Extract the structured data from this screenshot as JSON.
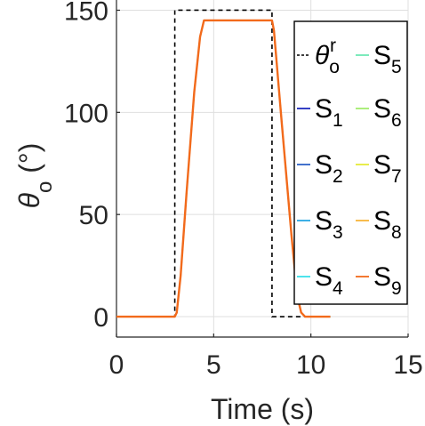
{
  "chart_data": {
    "type": "line",
    "xlabel": "Time (s)",
    "ylabel": {
      "main": "θ",
      "sub": "o",
      "unit": " (°)"
    },
    "xlim": [
      0,
      15
    ],
    "ylim": [
      -10,
      155
    ],
    "xticks": [
      0,
      5,
      10,
      15
    ],
    "yticks": [
      0,
      50,
      100,
      150
    ],
    "grid": true,
    "legend_placement": "top-right",
    "reference": {
      "name": {
        "main": "θ",
        "sub": "o",
        "sup": "r"
      },
      "color": "#000000",
      "dash": true,
      "x": [
        0,
        3.0,
        3.0,
        8.0,
        8.0,
        11.0
      ],
      "y": [
        0,
        0,
        150,
        150,
        0,
        0
      ]
    },
    "series": [
      {
        "name": {
          "main": "S",
          "sub": "1"
        },
        "color": "#1f2bbd"
      },
      {
        "name": {
          "main": "S",
          "sub": "2"
        },
        "color": "#2e63c7"
      },
      {
        "name": {
          "main": "S",
          "sub": "3"
        },
        "color": "#29a7e3"
      },
      {
        "name": {
          "main": "S",
          "sub": "4"
        },
        "color": "#39e0ea"
      },
      {
        "name": {
          "main": "S",
          "sub": "5"
        },
        "color": "#6fe8b4"
      },
      {
        "name": {
          "main": "S",
          "sub": "6"
        },
        "color": "#a3ec6e"
      },
      {
        "name": {
          "main": "S",
          "sub": "7"
        },
        "color": "#e6ea38"
      },
      {
        "name": {
          "main": "S",
          "sub": "8"
        },
        "color": "#f7b43a"
      },
      {
        "name": {
          "main": "S",
          "sub": "9"
        },
        "color": "#f26a1b"
      }
    ],
    "response": {
      "x": [
        0,
        3.0,
        3.1,
        3.3,
        3.6,
        4.0,
        4.3,
        4.5,
        4.7,
        8.0,
        8.1,
        8.5,
        9.0,
        9.3,
        9.5,
        9.7,
        11.0
      ],
      "y": [
        0,
        0,
        2,
        20,
        60,
        110,
        137,
        145,
        145,
        145,
        140,
        95,
        40,
        10,
        2,
        0,
        0
      ]
    }
  }
}
